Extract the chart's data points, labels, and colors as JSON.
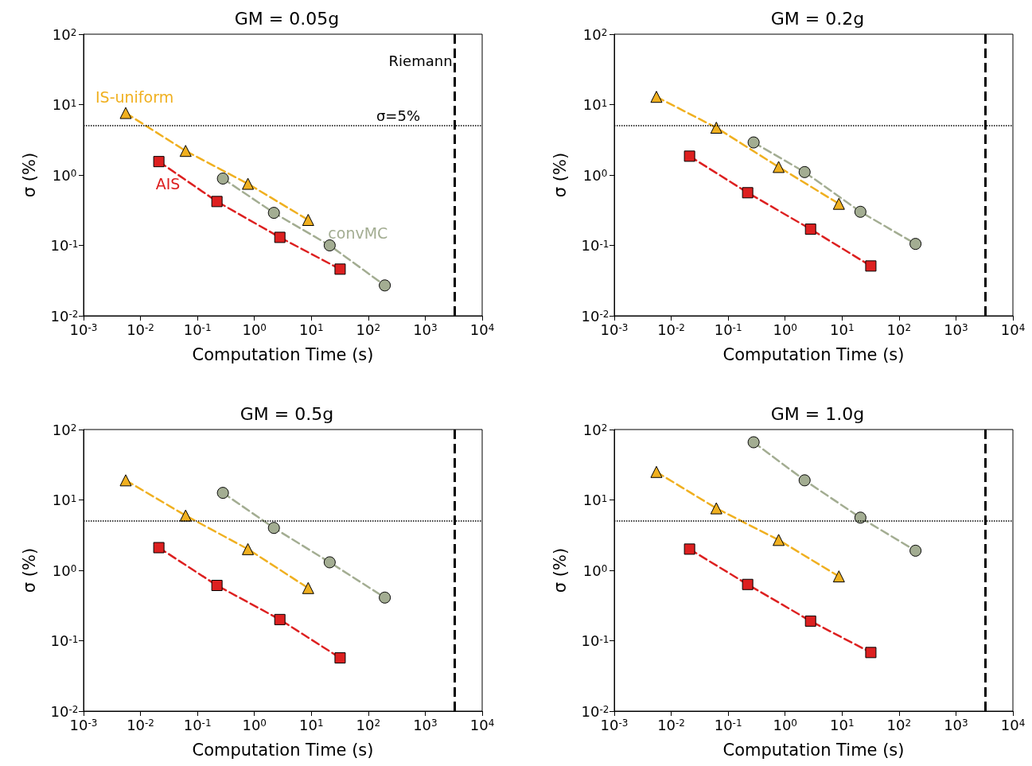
{
  "chart_data": [
    {
      "type": "line",
      "title": "GM = 0.05g",
      "xlabel": "Computation Time (s)",
      "ylabel": "σ (%)",
      "log": "xy",
      "legend": false,
      "line_style": "dashed",
      "xlim": [
        0.001,
        10000
      ],
      "xticks": [
        {
          "value": 0.001,
          "label": "10$^{-3}$"
        },
        {
          "value": 0.01,
          "label": "10$^{-2}$"
        },
        {
          "value": 0.1,
          "label": "10$^{-1}$"
        },
        {
          "value": 1,
          "label": "10$^{0}$"
        },
        {
          "value": 10,
          "label": "10$^{1}$"
        },
        {
          "value": 100,
          "label": "10$^{2}$"
        },
        {
          "value": 1000,
          "label": "10$^{3}$"
        },
        {
          "value": 10000,
          "label": "10$^{4}$"
        }
      ],
      "ylim": [
        0.01,
        100
      ],
      "yticks": [
        {
          "value": 0.01,
          "label": "10$^{-2}$"
        },
        {
          "value": 0.1,
          "label": "10$^{-1}$"
        },
        {
          "value": 1,
          "label": "10$^{0}$"
        },
        {
          "value": 10,
          "label": "10$^{1}$"
        },
        {
          "value": 100,
          "label": "10$^{2}$"
        }
      ],
      "series": [
        {
          "name": "IS-uniform",
          "color": "#f0b020",
          "marker": "triangle",
          "x": [
            0.0055,
            0.062,
            0.77,
            8.8
          ],
          "values": [
            7.6,
            2.2,
            0.75,
            0.23
          ]
        },
        {
          "name": "AIS",
          "color": "#dd2020",
          "marker": "square",
          "x": [
            0.021,
            0.22,
            2.8,
            32
          ],
          "values": [
            1.55,
            0.42,
            0.13,
            0.046
          ]
        },
        {
          "name": "convMC",
          "color": "#a3ad92",
          "marker": "circle",
          "x": [
            0.28,
            2.2,
            21,
            195
          ],
          "values": [
            0.89,
            0.29,
            0.1,
            0.027
          ]
        }
      ],
      "ref_lines": [
        {
          "axis": "x",
          "value": 3300,
          "label": "Riemann",
          "color": "#000000",
          "line_style": "dashed"
        },
        {
          "axis": "y",
          "value": 5,
          "label": "σ=5%",
          "color": "#000000",
          "line_style": "dotted"
        }
      ]
    },
    {
      "type": "line",
      "title": "GM = 0.2g",
      "xlabel": "Computation Time (s)",
      "ylabel": "σ (%)",
      "log": "xy",
      "legend": false,
      "line_style": "dashed",
      "xlim": [
        0.001,
        10000
      ],
      "xticks": [
        {
          "value": 0.001,
          "label": "10$^{-3}$"
        },
        {
          "value": 0.01,
          "label": "10$^{-2}$"
        },
        {
          "value": 0.1,
          "label": "10$^{-1}$"
        },
        {
          "value": 1,
          "label": "10$^{0}$"
        },
        {
          "value": 10,
          "label": "10$^{1}$"
        },
        {
          "value": 100,
          "label": "10$^{2}$"
        },
        {
          "value": 1000,
          "label": "10$^{3}$"
        },
        {
          "value": 10000,
          "label": "10$^{4}$"
        }
      ],
      "ylim": [
        0.01,
        100
      ],
      "yticks": [
        {
          "value": 0.01,
          "label": "10$^{-2}$"
        },
        {
          "value": 0.1,
          "label": "10$^{-1}$"
        },
        {
          "value": 1,
          "label": "10$^{0}$"
        },
        {
          "value": 10,
          "label": "10$^{1}$"
        },
        {
          "value": 100,
          "label": "10$^{2}$"
        }
      ],
      "series": [
        {
          "color": "#f0b020",
          "marker": "triangle",
          "x": [
            0.0055,
            0.062,
            0.77,
            8.8
          ],
          "values": [
            12.9,
            4.7,
            1.3,
            0.39
          ]
        },
        {
          "color": "#dd2020",
          "marker": "square",
          "x": [
            0.021,
            0.22,
            2.8,
            32
          ],
          "values": [
            1.85,
            0.56,
            0.17,
            0.051
          ]
        },
        {
          "color": "#a3ad92",
          "marker": "circle",
          "x": [
            0.28,
            2.2,
            21,
            195
          ],
          "values": [
            2.9,
            1.1,
            0.3,
            0.105
          ]
        }
      ],
      "ref_lines": [
        {
          "axis": "x",
          "value": 3300,
          "color": "#000000",
          "line_style": "dashed"
        },
        {
          "axis": "y",
          "value": 5,
          "color": "#000000",
          "line_style": "dotted"
        }
      ]
    },
    {
      "type": "line",
      "title": "GM = 0.5g",
      "xlabel": "Computation Time (s)",
      "ylabel": "σ (%)",
      "log": "xy",
      "legend": false,
      "line_style": "dashed",
      "xlim": [
        0.001,
        10000
      ],
      "xticks": [
        {
          "value": 0.001,
          "label": "10$^{-3}$"
        },
        {
          "value": 0.01,
          "label": "10$^{-2}$"
        },
        {
          "value": 0.1,
          "label": "10$^{-1}$"
        },
        {
          "value": 1,
          "label": "10$^{0}$"
        },
        {
          "value": 10,
          "label": "10$^{1}$"
        },
        {
          "value": 100,
          "label": "10$^{2}$"
        },
        {
          "value": 1000,
          "label": "10$^{3}$"
        },
        {
          "value": 10000,
          "label": "10$^{4}$"
        }
      ],
      "ylim": [
        0.01,
        100
      ],
      "yticks": [
        {
          "value": 0.01,
          "label": "10$^{-2}$"
        },
        {
          "value": 0.1,
          "label": "10$^{-1}$"
        },
        {
          "value": 1,
          "label": "10$^{0}$"
        },
        {
          "value": 10,
          "label": "10$^{1}$"
        },
        {
          "value": 100,
          "label": "10$^{2}$"
        }
      ],
      "series": [
        {
          "color": "#f0b020",
          "marker": "triangle",
          "x": [
            0.0055,
            0.062,
            0.77,
            8.8
          ],
          "values": [
            19,
            6,
            2,
            0.56
          ]
        },
        {
          "color": "#dd2020",
          "marker": "square",
          "x": [
            0.021,
            0.22,
            2.8,
            32
          ],
          "values": [
            2.1,
            0.61,
            0.2,
            0.057
          ]
        },
        {
          "color": "#a3ad92",
          "marker": "circle",
          "x": [
            0.28,
            2.2,
            21,
            195
          ],
          "values": [
            12.6,
            4,
            1.3,
            0.41
          ]
        }
      ],
      "ref_lines": [
        {
          "axis": "x",
          "value": 3300,
          "color": "#000000",
          "line_style": "dashed"
        },
        {
          "axis": "y",
          "value": 5,
          "color": "#000000",
          "line_style": "dotted"
        }
      ]
    },
    {
      "type": "line",
      "title": "GM = 1.0g",
      "xlabel": "Computation Time (s)",
      "ylabel": "σ (%)",
      "log": "xy",
      "legend": false,
      "line_style": "dashed",
      "xlim": [
        0.001,
        10000
      ],
      "xticks": [
        {
          "value": 0.001,
          "label": "10$^{-3}$"
        },
        {
          "value": 0.01,
          "label": "10$^{-2}$"
        },
        {
          "value": 0.1,
          "label": "10$^{-1}$"
        },
        {
          "value": 1,
          "label": "10$^{0}$"
        },
        {
          "value": 10,
          "label": "10$^{1}$"
        },
        {
          "value": 100,
          "label": "10$^{2}$"
        },
        {
          "value": 1000,
          "label": "10$^{3}$"
        },
        {
          "value": 10000,
          "label": "10$^{4}$"
        }
      ],
      "ylim": [
        0.01,
        100
      ],
      "yticks": [
        {
          "value": 0.01,
          "label": "10$^{-2}$"
        },
        {
          "value": 0.1,
          "label": "10$^{-1}$"
        },
        {
          "value": 1,
          "label": "10$^{0}$"
        },
        {
          "value": 10,
          "label": "10$^{1}$"
        },
        {
          "value": 100,
          "label": "10$^{2}$"
        }
      ],
      "series": [
        {
          "color": "#f0b020",
          "marker": "triangle",
          "x": [
            0.0055,
            0.062,
            0.77,
            8.8
          ],
          "values": [
            25,
            7.6,
            2.7,
            0.82
          ]
        },
        {
          "color": "#dd2020",
          "marker": "square",
          "x": [
            0.021,
            0.22,
            2.8,
            32
          ],
          "values": [
            2,
            0.63,
            0.19,
            0.068
          ]
        },
        {
          "color": "#a3ad92",
          "marker": "circle",
          "x": [
            0.28,
            2.2,
            21,
            195
          ],
          "values": [
            66,
            19,
            5.6,
            1.9
          ]
        }
      ],
      "ref_lines": [
        {
          "axis": "x",
          "value": 3300,
          "color": "#000000",
          "line_style": "dashed"
        },
        {
          "axis": "y",
          "value": 5,
          "color": "#000000",
          "line_style": "dotted"
        }
      ]
    }
  ]
}
